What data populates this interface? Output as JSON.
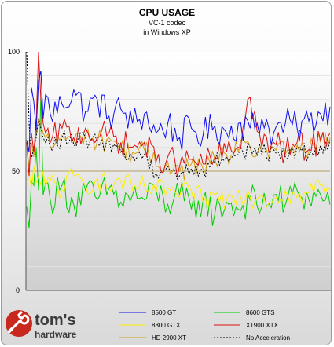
{
  "chart_data": {
    "type": "line",
    "title": "CPU USAGE",
    "subtitle_lines": [
      "VC-1 codec",
      "in Windows XP"
    ],
    "xlabel": "",
    "ylabel": "",
    "ylim": [
      0,
      100
    ],
    "y_ticks": [
      "0",
      "50",
      "100"
    ],
    "grid": "horizontal",
    "legend_placement": "bottom",
    "x_count": 130,
    "series": [
      {
        "name": "8500 GT",
        "color": "#1010ee",
        "dashed": false,
        "key_points": [
          [
            0,
            63
          ],
          [
            1,
            58
          ],
          [
            2,
            85
          ],
          [
            3,
            79
          ],
          [
            4,
            67
          ],
          [
            5,
            88
          ],
          [
            6,
            92
          ],
          [
            7,
            72
          ],
          [
            8,
            82
          ],
          [
            10,
            74
          ],
          [
            15,
            78
          ],
          [
            20,
            84
          ],
          [
            25,
            75
          ],
          [
            30,
            80
          ],
          [
            35,
            73
          ],
          [
            40,
            76
          ],
          [
            45,
            70
          ],
          [
            50,
            74
          ],
          [
            55,
            66
          ],
          [
            60,
            70
          ],
          [
            65,
            64
          ],
          [
            70,
            68
          ],
          [
            75,
            65
          ],
          [
            80,
            69
          ],
          [
            85,
            66
          ],
          [
            90,
            70
          ],
          [
            95,
            68
          ],
          [
            100,
            72
          ],
          [
            105,
            66
          ],
          [
            110,
            70
          ],
          [
            115,
            68
          ],
          [
            120,
            71
          ],
          [
            125,
            74
          ],
          [
            129,
            77
          ]
        ]
      },
      {
        "name": "8600 GTS",
        "color": "#00cc00",
        "dashed": false,
        "key_points": [
          [
            0,
            35
          ],
          [
            1,
            26
          ],
          [
            2,
            46
          ],
          [
            3,
            44
          ],
          [
            4,
            60
          ],
          [
            5,
            42
          ],
          [
            6,
            83
          ],
          [
            7,
            40
          ],
          [
            8,
            45
          ],
          [
            10,
            38
          ],
          [
            15,
            44
          ],
          [
            20,
            36
          ],
          [
            25,
            42
          ],
          [
            30,
            38
          ],
          [
            35,
            43
          ],
          [
            40,
            37
          ],
          [
            45,
            40
          ],
          [
            50,
            38
          ],
          [
            55,
            42
          ],
          [
            60,
            36
          ],
          [
            65,
            40
          ],
          [
            70,
            34
          ],
          [
            75,
            38
          ],
          [
            80,
            32
          ],
          [
            85,
            37
          ],
          [
            90,
            34
          ],
          [
            95,
            38
          ],
          [
            100,
            35
          ],
          [
            105,
            40
          ],
          [
            110,
            36
          ],
          [
            115,
            42
          ],
          [
            120,
            38
          ],
          [
            125,
            40
          ],
          [
            129,
            36
          ]
        ]
      },
      {
        "name": "8800 GTX",
        "color": "#ffee00",
        "dashed": false,
        "key_points": [
          [
            0,
            46
          ],
          [
            1,
            50
          ],
          [
            2,
            42
          ],
          [
            3,
            52
          ],
          [
            4,
            45
          ],
          [
            5,
            48
          ],
          [
            6,
            44
          ],
          [
            7,
            50
          ],
          [
            8,
            43
          ],
          [
            10,
            46
          ],
          [
            15,
            42
          ],
          [
            20,
            48
          ],
          [
            25,
            44
          ],
          [
            30,
            47
          ],
          [
            35,
            43
          ],
          [
            40,
            46
          ],
          [
            45,
            42
          ],
          [
            50,
            44
          ],
          [
            55,
            41
          ],
          [
            60,
            43
          ],
          [
            65,
            39
          ],
          [
            70,
            42
          ],
          [
            75,
            37
          ],
          [
            80,
            40
          ],
          [
            85,
            38
          ],
          [
            90,
            42
          ],
          [
            95,
            39
          ],
          [
            100,
            40
          ],
          [
            105,
            38
          ],
          [
            110,
            42
          ],
          [
            115,
            39
          ],
          [
            120,
            41
          ],
          [
            125,
            44
          ],
          [
            129,
            42
          ]
        ]
      },
      {
        "name": "X1900 XTX",
        "color": "#dd1111",
        "dashed": false,
        "key_points": [
          [
            0,
            62
          ],
          [
            1,
            48
          ],
          [
            2,
            66
          ],
          [
            3,
            58
          ],
          [
            4,
            70
          ],
          [
            5,
            100
          ],
          [
            6,
            80
          ],
          [
            7,
            70
          ],
          [
            8,
            66
          ],
          [
            10,
            62
          ],
          [
            15,
            68
          ],
          [
            20,
            64
          ],
          [
            25,
            68
          ],
          [
            30,
            64
          ],
          [
            35,
            66
          ],
          [
            40,
            62
          ],
          [
            45,
            60
          ],
          [
            50,
            62
          ],
          [
            55,
            54
          ],
          [
            60,
            56
          ],
          [
            65,
            52
          ],
          [
            70,
            55
          ],
          [
            75,
            53
          ],
          [
            80,
            56
          ],
          [
            85,
            58
          ],
          [
            90,
            60
          ],
          [
            95,
            81
          ],
          [
            100,
            60
          ],
          [
            105,
            62
          ],
          [
            110,
            58
          ],
          [
            115,
            62
          ],
          [
            120,
            59
          ],
          [
            125,
            63
          ],
          [
            129,
            66
          ]
        ]
      },
      {
        "name": "HD 2900 XT",
        "color": "#d4a017",
        "dashed": false,
        "key_points": [
          [
            0,
            60
          ],
          [
            1,
            52
          ],
          [
            2,
            62
          ],
          [
            3,
            56
          ],
          [
            4,
            66
          ],
          [
            5,
            72
          ],
          [
            6,
            70
          ],
          [
            7,
            66
          ],
          [
            8,
            64
          ],
          [
            10,
            60
          ],
          [
            15,
            65
          ],
          [
            20,
            62
          ],
          [
            25,
            66
          ],
          [
            30,
            62
          ],
          [
            35,
            64
          ],
          [
            40,
            60
          ],
          [
            45,
            58
          ],
          [
            50,
            59
          ],
          [
            55,
            52
          ],
          [
            60,
            54
          ],
          [
            65,
            50
          ],
          [
            70,
            53
          ],
          [
            75,
            51
          ],
          [
            80,
            55
          ],
          [
            85,
            57
          ],
          [
            90,
            58
          ],
          [
            95,
            60
          ],
          [
            100,
            58
          ],
          [
            105,
            60
          ],
          [
            110,
            57
          ],
          [
            115,
            61
          ],
          [
            120,
            58
          ],
          [
            125,
            62
          ],
          [
            129,
            64
          ]
        ]
      },
      {
        "name": "No Acceleration",
        "color": "#000000",
        "dashed": true,
        "key_points": [
          [
            0,
            100
          ],
          [
            1,
            70
          ],
          [
            2,
            55
          ],
          [
            3,
            60
          ],
          [
            4,
            64
          ],
          [
            5,
            72
          ],
          [
            6,
            68
          ],
          [
            7,
            64
          ],
          [
            8,
            62
          ],
          [
            10,
            60
          ],
          [
            15,
            64
          ],
          [
            20,
            61
          ],
          [
            25,
            64
          ],
          [
            30,
            61
          ],
          [
            35,
            63
          ],
          [
            40,
            58
          ],
          [
            45,
            56
          ],
          [
            50,
            57
          ],
          [
            55,
            49
          ],
          [
            60,
            52
          ],
          [
            65,
            48
          ],
          [
            70,
            51
          ],
          [
            75,
            50
          ],
          [
            80,
            54
          ],
          [
            85,
            56
          ],
          [
            90,
            57
          ],
          [
            95,
            60
          ],
          [
            100,
            57
          ],
          [
            105,
            59
          ],
          [
            110,
            56
          ],
          [
            115,
            60
          ],
          [
            120,
            57
          ],
          [
            125,
            61
          ],
          [
            129,
            63
          ]
        ]
      }
    ]
  },
  "logo": {
    "word1": "tom's",
    "word2": "hardware"
  }
}
